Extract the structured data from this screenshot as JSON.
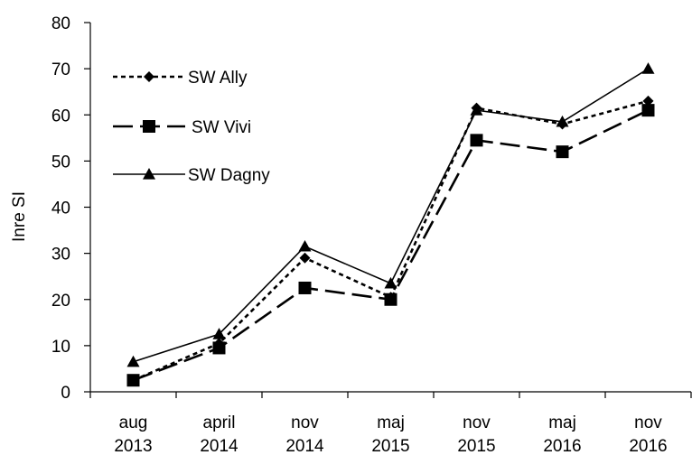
{
  "chart_data": {
    "type": "line",
    "title": "",
    "xlabel": "",
    "ylabel": "Inre SI",
    "ylim": [
      0,
      80
    ],
    "yticks": [
      0,
      10,
      20,
      30,
      40,
      50,
      60,
      70,
      80
    ],
    "categories": [
      [
        "aug",
        "2013"
      ],
      [
        "april",
        "2014"
      ],
      [
        "nov",
        "2014"
      ],
      [
        "maj",
        "2015"
      ],
      [
        "nov",
        "2015"
      ],
      [
        "maj",
        "2016"
      ],
      [
        "nov",
        "2016"
      ]
    ],
    "grid": false,
    "legend_position": "top-left",
    "series": [
      {
        "name": "SW Ally",
        "values": [
          2.5,
          10.5,
          29,
          20.5,
          61.5,
          58,
          63
        ],
        "marker": "diamond",
        "line_style": "dotted",
        "color": "#000000"
      },
      {
        "name": "SW Vivi",
        "values": [
          2.5,
          9.5,
          22.5,
          20,
          54.5,
          52,
          61
        ],
        "marker": "square",
        "line_style": "dashed",
        "color": "#000000"
      },
      {
        "name": "SW Dagny",
        "values": [
          6.5,
          12.5,
          31.5,
          23.5,
          61,
          58.5,
          70
        ],
        "marker": "triangle",
        "line_style": "solid",
        "color": "#000000"
      }
    ]
  }
}
